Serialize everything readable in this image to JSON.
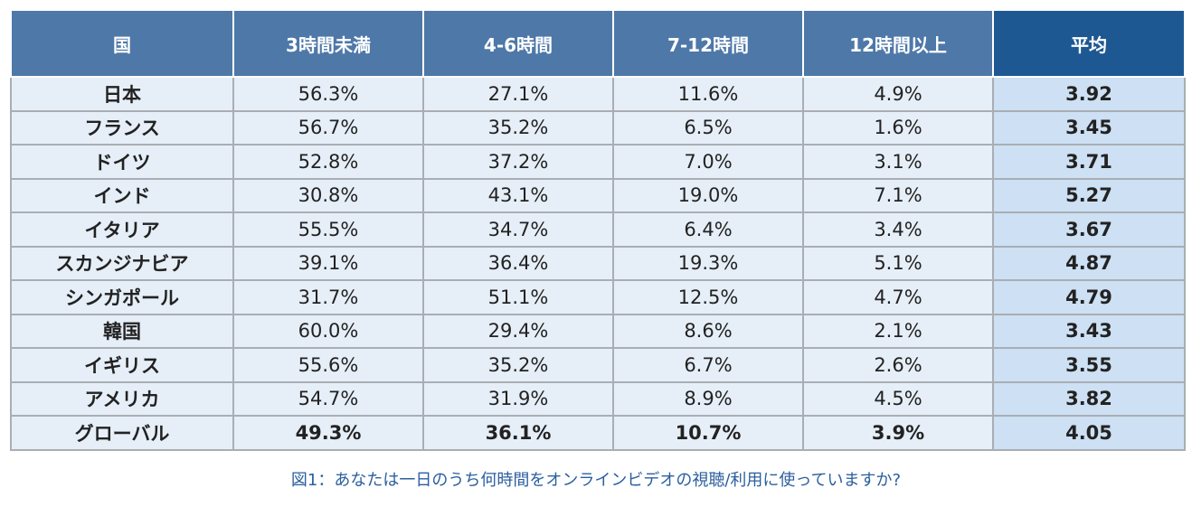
{
  "table": {
    "headers": [
      "国",
      "3時間未満",
      "4-6時間",
      "7-12時間",
      "12時間以上",
      "平均"
    ],
    "rows": [
      {
        "country": "日本",
        "v1": "56.3%",
        "v2": "27.1%",
        "v3": "11.6%",
        "v4": "4.9%",
        "avg": "3.92"
      },
      {
        "country": "フランス",
        "v1": "56.7%",
        "v2": "35.2%",
        "v3": "6.5%",
        "v4": "1.6%",
        "avg": "3.45"
      },
      {
        "country": "ドイツ",
        "v1": "52.8%",
        "v2": "37.2%",
        "v3": "7.0%",
        "v4": "3.1%",
        "avg": "3.71"
      },
      {
        "country": "インド",
        "v1": "30.8%",
        "v2": "43.1%",
        "v3": "19.0%",
        "v4": "7.1%",
        "avg": "5.27"
      },
      {
        "country": "イタリア",
        "v1": "55.5%",
        "v2": "34.7%",
        "v3": "6.4%",
        "v4": "3.4%",
        "avg": "3.67"
      },
      {
        "country": "スカンジナビア",
        "v1": "39.1%",
        "v2": "36.4%",
        "v3": "19.3%",
        "v4": "5.1%",
        "avg": "4.87"
      },
      {
        "country": "シンガポール",
        "v1": "31.7%",
        "v2": "51.1%",
        "v3": "12.5%",
        "v4": "4.7%",
        "avg": "4.79"
      },
      {
        "country": "韓国",
        "v1": "60.0%",
        "v2": "29.4%",
        "v3": "8.6%",
        "v4": "2.1%",
        "avg": "3.43"
      },
      {
        "country": "イギリス",
        "v1": "55.6%",
        "v2": "35.2%",
        "v3": "6.7%",
        "v4": "2.6%",
        "avg": "3.55"
      },
      {
        "country": "アメリカ",
        "v1": "54.7%",
        "v2": "31.9%",
        "v3": "8.9%",
        "v4": "4.5%",
        "avg": "3.82"
      },
      {
        "country": "グローバル",
        "v1": "49.3%",
        "v2": "36.1%",
        "v3": "10.7%",
        "v4": "3.9%",
        "avg": "4.05"
      }
    ]
  },
  "caption": "図1：あなたは一日のうち何時間をオンラインビデオの視聴/利用に使っていますか?",
  "colors": {
    "header_bg": "#4e78a8",
    "avg_header_bg": "#1e5893",
    "cell_bg": "#e6eff8",
    "avg_cell_bg": "#cde0f4",
    "caption_text": "#2b5f9e"
  }
}
